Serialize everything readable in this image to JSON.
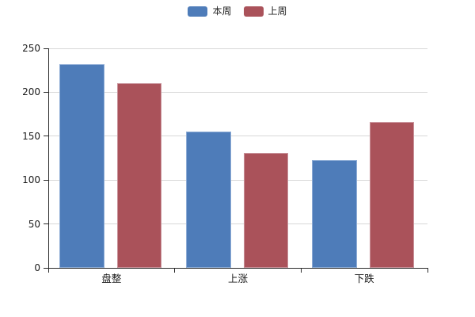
{
  "chart_data": {
    "type": "bar",
    "title": "",
    "xlabel": "",
    "ylabel": "",
    "categories": [
      "盘整",
      "上涨",
      "下跌"
    ],
    "series": [
      {
        "name": "本周",
        "color": "#4e7cb9",
        "highlight_border_color": "#8fadd6",
        "values": [
          232,
          155,
          123
        ]
      },
      {
        "name": "上周",
        "color": "#aa525a",
        "highlight_border_color": "#c9929a",
        "values": [
          210,
          131,
          166
        ]
      }
    ],
    "ylim": [
      0,
      250
    ],
    "yticks": [
      0,
      50,
      100,
      150,
      200,
      250
    ],
    "grid": true,
    "grid_color": "#d8d8d8",
    "axis_color": "#2b2b2b",
    "text_color": "#1a1a1a",
    "legend_position": "top-center",
    "legend_labels": [
      "本周",
      "上周"
    ]
  }
}
